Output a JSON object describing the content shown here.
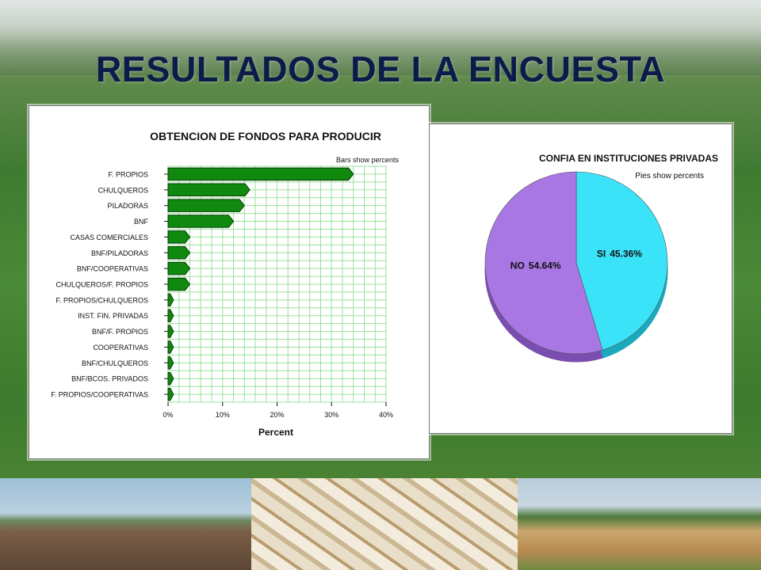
{
  "slide": {
    "title": "RESULTADOS DE LA ENCUESTA"
  },
  "colors": {
    "bar_fill": "#0f8a0f",
    "grid": "#9be09b",
    "pie_si": "#3be3f8",
    "pie_no": "#a877e3",
    "title": "#0d1b4b"
  },
  "chart_data": [
    {
      "type": "bar",
      "orientation": "horizontal",
      "title": "OBTENCION DE FONDOS PARA PRODUCIR",
      "subtitle": "Bars show percents",
      "xlabel": "Percent",
      "ylabel": "",
      "xlim": [
        0,
        40
      ],
      "x_ticks": [
        "0%",
        "10%",
        "20%",
        "30%",
        "40%"
      ],
      "grid": true,
      "categories": [
        "F. PROPIOS",
        "CHULQUEROS",
        "PILADORAS",
        "BNF",
        "CASAS COMERCIALES",
        "BNF/PILADORAS",
        "BNF/COOPERATIVAS",
        "CHULQUEROS/F. PROPIOS",
        "F. PROPIOS/CHULQUEROS",
        "INST. FIN. PRIVADAS",
        "BNF/F. PROPIOS",
        "COOPERATIVAS",
        "BNF/CHULQUEROS",
        "BNF/BCOS. PRIVADOS",
        "F. PROPIOS/COOPERATIVAS"
      ],
      "values": [
        34,
        15,
        14,
        12,
        4,
        4,
        4,
        4,
        1,
        1,
        1,
        1,
        1,
        1,
        1
      ]
    },
    {
      "type": "pie",
      "title": "CONFIA EN INSTITUCIONES PRIVADAS",
      "subtitle": "Pies show percents",
      "slices": [
        {
          "label": "SI",
          "value": 45.36,
          "display": "45.36%"
        },
        {
          "label": "NO",
          "value": 54.64,
          "display": "54.64%"
        }
      ]
    }
  ]
}
